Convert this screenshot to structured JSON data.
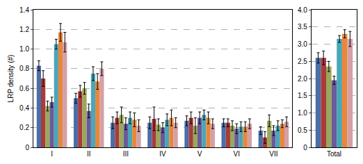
{
  "chart_data": [
    {
      "type": "bar",
      "y_label": "LRP density (#)",
      "categories": [
        "I",
        "II",
        "III",
        "IV",
        "V",
        "VI",
        "VII"
      ],
      "series": [
        {
          "color": "#4a6ea8",
          "values": [
            0.83,
            0.5,
            0.25,
            0.25,
            0.27,
            0.25,
            0.17
          ],
          "errors": [
            0.05,
            0.05,
            0.06,
            0.06,
            0.05,
            0.04,
            0.04
          ]
        },
        {
          "color": "#a83c3c",
          "values": [
            0.7,
            0.57,
            0.3,
            0.29,
            0.3,
            0.25,
            0.1
          ],
          "errors": [
            0.08,
            0.06,
            0.06,
            0.12,
            0.06,
            0.04,
            0.06
          ]
        },
        {
          "color": "#9aa85a",
          "values": [
            0.42,
            0.6,
            0.33,
            0.23,
            0.22,
            0.22,
            0.27
          ],
          "errors": [
            0.05,
            0.06,
            0.08,
            0.06,
            0.08,
            0.05,
            0.06
          ]
        },
        {
          "color": "#6a5a9a",
          "values": [
            0.46,
            0.37,
            0.24,
            0.2,
            0.3,
            0.19,
            0.17
          ],
          "errors": [
            0.05,
            0.07,
            0.06,
            0.05,
            0.06,
            0.05,
            0.05
          ]
        },
        {
          "color": "#4aa6b8",
          "values": [
            1.05,
            0.75,
            0.3,
            0.28,
            0.33,
            0.21,
            0.22
          ],
          "errors": [
            0.05,
            0.07,
            0.06,
            0.06,
            0.05,
            0.05,
            0.05
          ]
        },
        {
          "color": "#e8873a",
          "values": [
            1.17,
            0.67,
            0.28,
            0.3,
            0.3,
            0.21,
            0.24
          ],
          "errors": [
            0.09,
            0.08,
            0.07,
            0.08,
            0.06,
            0.05,
            0.04
          ]
        },
        {
          "color": "#d4a0a8",
          "values": [
            1.07,
            0.8,
            0.22,
            0.25,
            0.24,
            0.24,
            0.26
          ],
          "errors": [
            0.1,
            0.07,
            0.06,
            0.05,
            0.05,
            0.05,
            0.05
          ]
        }
      ],
      "ylim": [
        0,
        1.4
      ],
      "yticks": [
        0,
        0.2,
        0.4,
        0.6,
        0.8,
        {
          "value": 1,
          "label": "1.0"
        },
        1.2,
        1.4
      ],
      "grid": true
    },
    {
      "type": "bar",
      "categories": [
        "Total"
      ],
      "series": [
        {
          "color": "#4a6ea8",
          "values": [
            2.6
          ],
          "errors": [
            0.15
          ]
        },
        {
          "color": "#a83c3c",
          "values": [
            2.6
          ],
          "errors": [
            0.2
          ]
        },
        {
          "color": "#9aa85a",
          "values": [
            2.35
          ],
          "errors": [
            0.15
          ]
        },
        {
          "color": "#6a5a9a",
          "values": [
            1.95
          ],
          "errors": [
            0.12
          ]
        },
        {
          "color": "#4aa6b8",
          "values": [
            3.15
          ],
          "errors": [
            0.1
          ]
        },
        {
          "color": "#e8873a",
          "values": [
            3.3
          ],
          "errors": [
            0.12
          ]
        },
        {
          "color": "#d4a0a8",
          "values": [
            3.15
          ],
          "errors": [
            0.22
          ]
        }
      ],
      "ylim": [
        0,
        4
      ],
      "yticks": [
        0,
        0.5,
        {
          "value": 1,
          "label": "1.0"
        },
        1.5,
        {
          "value": 2,
          "label": "2.0"
        },
        2.5,
        {
          "value": 3,
          "label": "3.0"
        },
        3.5,
        {
          "value": 4,
          "label": "4.0"
        }
      ],
      "grid": true
    }
  ]
}
